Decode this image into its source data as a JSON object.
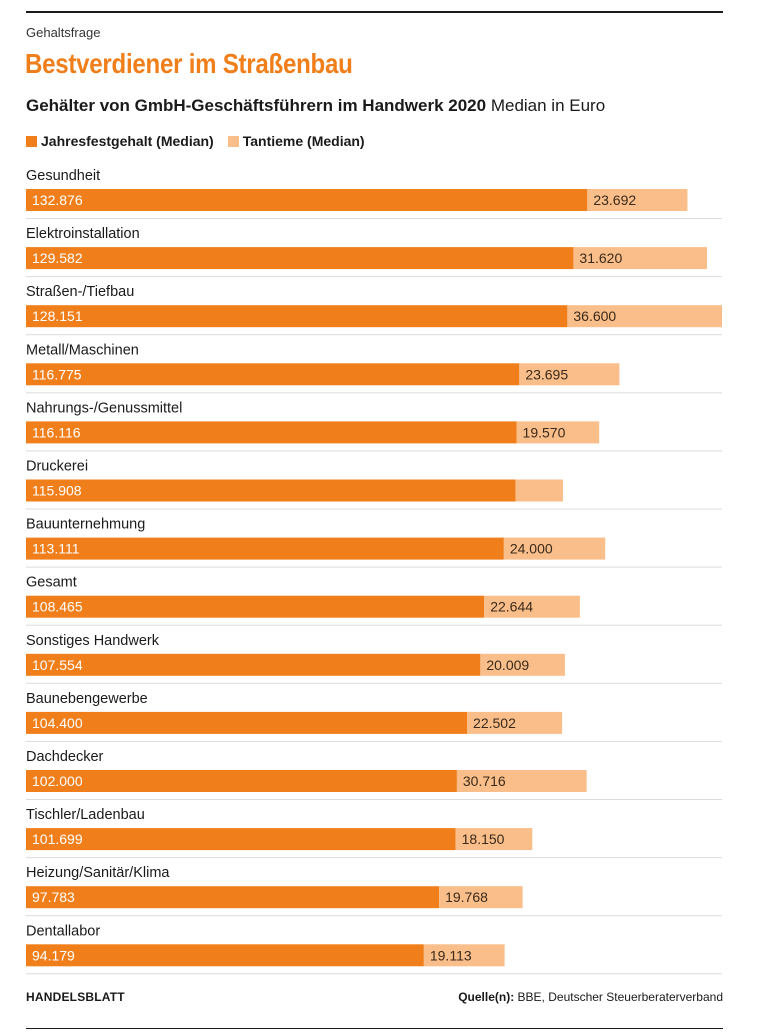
{
  "header": {
    "kicker": "Gehaltsfrage",
    "headline": "Bestverdiener im Straßenbau",
    "subtitle_bold": "Gehälter von GmbH-Geschäftsführern im Handwerk 2020",
    "subtitle_rest": "Median in Euro"
  },
  "colors": {
    "base": "#f07f1b",
    "bonus": "#f9be8a",
    "separator": "#dcdcdc",
    "rule": "#1a1a1a"
  },
  "chart_data": {
    "type": "bar",
    "orientation": "horizontal",
    "stacked": true,
    "legend_position": "top-left",
    "grid": false,
    "categories": [
      "Gesundheit",
      "Elektroinstallation",
      "Straßen-/Tiefbau",
      "Metall/Maschinen",
      "Nahrungs-/Genussmittel",
      "Druckerei",
      "Bauunternehmung",
      "Gesamt",
      "Sonstiges Handwerk",
      "Baunebengewerbe",
      "Dachdecker",
      "Tischler/Ladenbau",
      "Heizung/Sanitär/Klima",
      "Dentallabor"
    ],
    "series": [
      {
        "name": "Jahresfestgehalt (Median)",
        "values": [
          132876,
          129582,
          128151,
          116775,
          116116,
          115908,
          113111,
          108465,
          107554,
          104400,
          102000,
          101699,
          97783,
          94179
        ],
        "labels": [
          "132.876",
          "129.582",
          "128.151",
          "116.775",
          "116.116",
          "115.908",
          "113.111",
          "108.465",
          "107.554",
          "104.400",
          "102.000",
          "101.699",
          "97.783",
          "94.179"
        ]
      },
      {
        "name": "Tantieme (Median)",
        "values": [
          23692,
          31620,
          36600,
          23695,
          19570,
          11200,
          24000,
          22644,
          20009,
          22502,
          30716,
          18150,
          19768,
          19113
        ],
        "labels": [
          "23.692",
          "31.620",
          "36.600",
          "23.695",
          "19.570",
          "",
          "24.000",
          "22.644",
          "20.009",
          "22.502",
          "30.716",
          "18.150",
          "19.768",
          "19.113"
        ]
      }
    ],
    "xlim": [
      0,
      164751
    ]
  },
  "footer": {
    "brand": "HANDELSBLATT",
    "source_label": "Quelle(n):",
    "source_text": "BBE, Deutscher Steuerberaterverband"
  }
}
